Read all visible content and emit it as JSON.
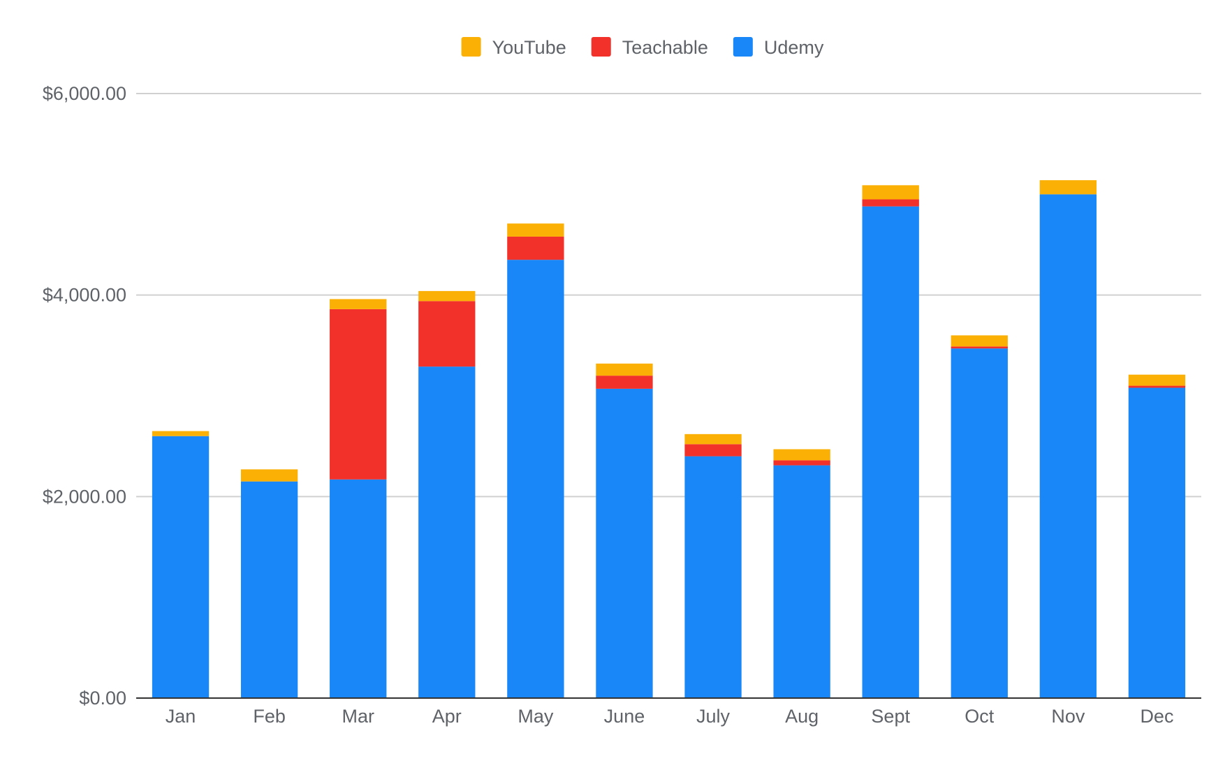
{
  "chart_data": {
    "type": "bar",
    "stacked": true,
    "categories": [
      "Jan",
      "Feb",
      "Mar",
      "Apr",
      "May",
      "June",
      "July",
      "Aug",
      "Sept",
      "Oct",
      "Nov",
      "Dec"
    ],
    "series": [
      {
        "name": "Udemy",
        "color": "#1a87f8",
        "values": [
          2600,
          2150,
          2170,
          3290,
          4350,
          3070,
          2400,
          2310,
          4880,
          3470,
          5000,
          3080
        ]
      },
      {
        "name": "Teachable",
        "color": "#f1312a",
        "values": [
          0,
          0,
          1690,
          650,
          230,
          130,
          120,
          50,
          70,
          20,
          0,
          20
        ]
      },
      {
        "name": "YouTube",
        "color": "#fbb006",
        "values": [
          50,
          120,
          100,
          100,
          130,
          120,
          100,
          110,
          140,
          110,
          140,
          110
        ]
      }
    ],
    "legend_order": [
      "YouTube",
      "Teachable",
      "Udemy"
    ],
    "legend_position": "top-center",
    "title": "",
    "xlabel": "",
    "ylabel": "",
    "ylim": [
      0,
      6000
    ],
    "yticks": [
      0,
      2000,
      4000,
      6000
    ],
    "ytick_labels": [
      "$0.00",
      "$2,000.00",
      "$4,000.00",
      "$6,000.00"
    ],
    "grid": true
  }
}
